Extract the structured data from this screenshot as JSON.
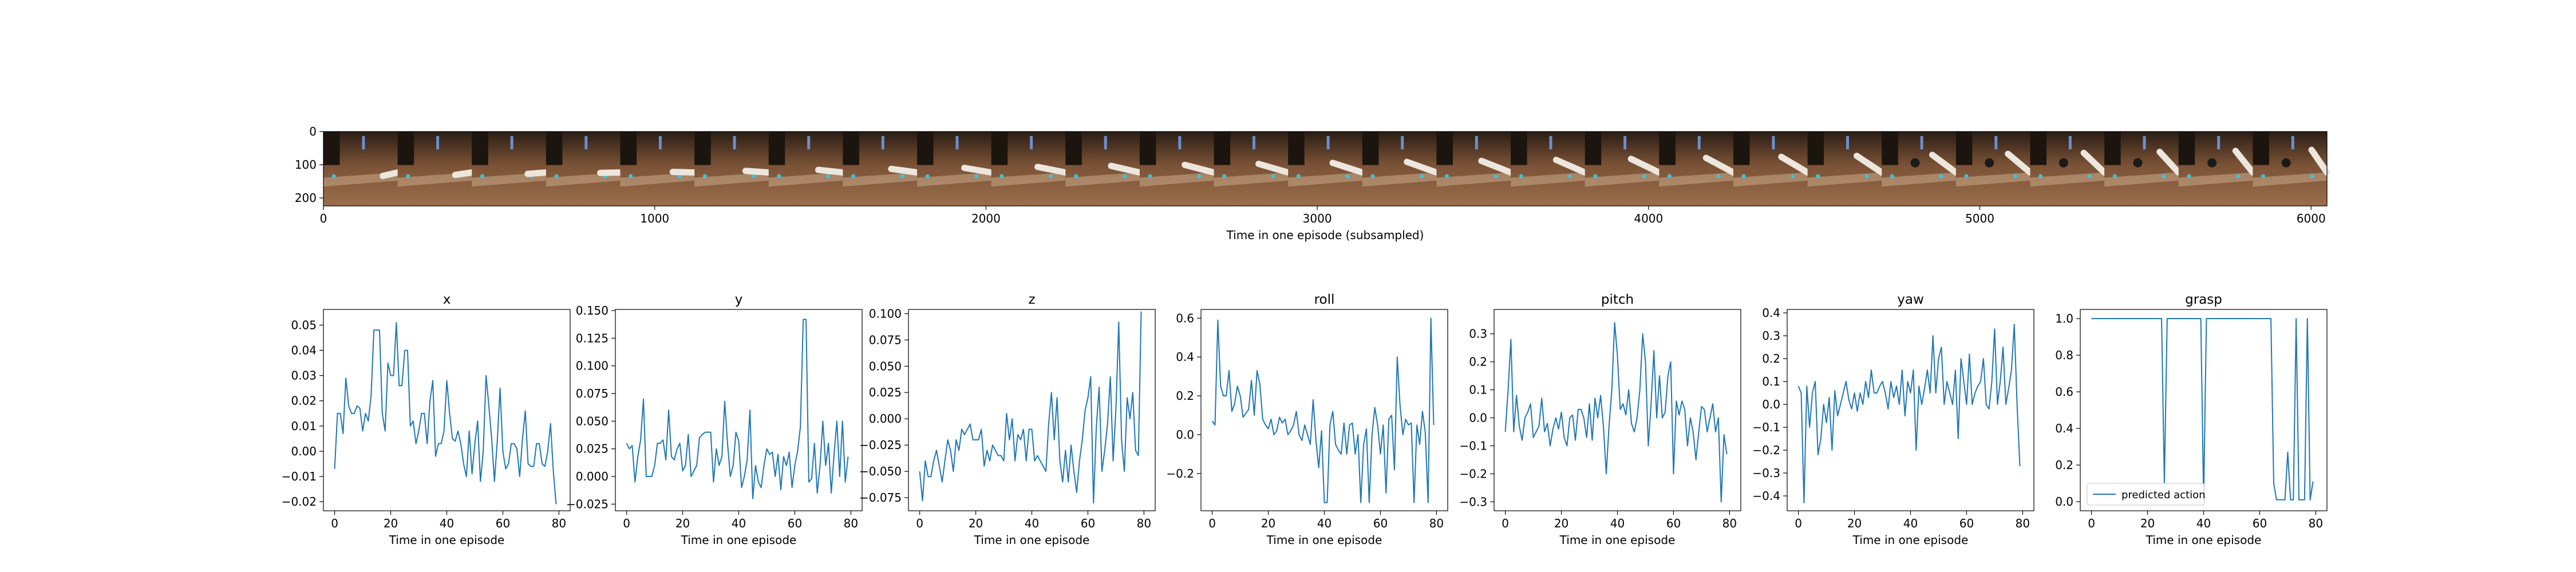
{
  "strip": {
    "xlabel": "Time in one episode (subsampled)",
    "xticks": [
      0,
      1000,
      2000,
      3000,
      4000,
      5000,
      6000
    ],
    "yticks": [
      0,
      100,
      200
    ],
    "xlim": [
      0,
      6048
    ],
    "ylim": [
      224,
      0
    ],
    "frame_count": 27
  },
  "legend": {
    "label": "predicted action"
  },
  "line_color": "#1f77b4",
  "chart_data": [
    {
      "type": "line",
      "title": "x",
      "xlabel": "Time in one episode",
      "ylabel": "",
      "xlim": [
        -4,
        84
      ],
      "ylim": [
        -0.0236,
        0.0562
      ],
      "yticks": [
        -0.02,
        -0.01,
        0.0,
        0.01,
        0.02,
        0.03,
        0.04,
        0.05
      ],
      "ytick_labels": [
        "−0.02",
        "−0.01",
        "0.00",
        "0.01",
        "0.02",
        "0.03",
        "0.04",
        "0.05"
      ],
      "xticks": [
        0,
        20,
        40,
        60,
        80
      ],
      "values": [
        -0.007,
        0.015,
        0.015,
        0.007,
        0.029,
        0.018,
        0.015,
        0.015,
        0.018,
        0.017,
        0.008,
        0.015,
        0.012,
        0.022,
        0.048,
        0.048,
        0.048,
        0.015,
        0.008,
        0.035,
        0.03,
        0.03,
        0.051,
        0.026,
        0.026,
        0.04,
        0.04,
        0.01,
        0.012,
        0.003,
        0.008,
        0.015,
        0.015,
        0.003,
        0.02,
        0.028,
        -0.002,
        0.003,
        0.003,
        0.008,
        0.028,
        0.015,
        0.005,
        0.004,
        0.008,
        0.003,
        -0.005,
        -0.01,
        0.008,
        -0.009,
        0.003,
        0.012,
        -0.012,
        0.0,
        0.03,
        0.018,
        0.005,
        -0.012,
        0.004,
        0.025,
        0.0,
        -0.007,
        -0.005,
        0.003,
        0.003,
        0.001,
        -0.01,
        0.005,
        0.016,
        -0.005,
        -0.006,
        -0.006,
        0.003,
        0.003,
        -0.005,
        -0.006,
        0.0,
        0.011,
        -0.008,
        -0.021
      ]
    },
    {
      "type": "line",
      "title": "y",
      "xlabel": "Time in one episode",
      "ylabel": "",
      "xlim": [
        -4,
        84
      ],
      "ylim": [
        -0.031,
        0.151
      ],
      "yticks": [
        -0.025,
        0.0,
        0.025,
        0.05,
        0.075,
        0.1,
        0.125,
        0.15
      ],
      "ytick_labels": [
        "−0.025",
        "0.000",
        "0.025",
        "0.050",
        "0.075",
        "0.100",
        "0.125",
        "0.150"
      ],
      "xticks": [
        0,
        20,
        40,
        60,
        80
      ],
      "values": [
        0.03,
        0.025,
        0.028,
        -0.005,
        0.018,
        0.033,
        0.07,
        0.0,
        0.0,
        0.0,
        0.01,
        0.03,
        0.03,
        0.033,
        0.015,
        0.06,
        0.018,
        0.015,
        0.025,
        0.03,
        0.005,
        0.01,
        0.038,
        0.0,
        0.005,
        0.01,
        0.035,
        0.038,
        0.04,
        0.04,
        0.04,
        -0.005,
        0.025,
        0.01,
        0.018,
        0.068,
        0.03,
        0.0,
        0.01,
        0.04,
        0.032,
        -0.01,
        0.0,
        0.015,
        0.06,
        -0.02,
        0.01,
        -0.005,
        -0.01,
        0.01,
        0.025,
        0.02,
        0.022,
        0.0,
        0.02,
        -0.012,
        0.018,
        0.01,
        0.022,
        -0.01,
        0.01,
        0.023,
        0.045,
        0.142,
        0.142,
        -0.005,
        -0.002,
        0.03,
        -0.015,
        0.01,
        0.05,
        0.01,
        0.03,
        -0.015,
        0.02,
        0.05,
        0.0,
        0.05,
        -0.005,
        0.018
      ]
    },
    {
      "type": "line",
      "title": "z",
      "xlabel": "Time in one episode",
      "ylabel": "",
      "xlim": [
        -4,
        84
      ],
      "ylim": [
        -0.0875,
        0.104
      ],
      "yticks": [
        -0.075,
        -0.05,
        -0.025,
        0.0,
        0.025,
        0.05,
        0.075,
        0.1
      ],
      "ytick_labels": [
        "−0.075",
        "−0.050",
        "−0.025",
        "0.000",
        "0.025",
        "0.050",
        "0.075",
        "0.100"
      ],
      "xticks": [
        0,
        20,
        40,
        60,
        80
      ],
      "values": [
        -0.05,
        -0.078,
        -0.04,
        -0.055,
        -0.055,
        -0.04,
        -0.03,
        -0.045,
        -0.06,
        -0.04,
        -0.02,
        -0.03,
        -0.05,
        -0.02,
        -0.03,
        -0.01,
        -0.015,
        -0.01,
        -0.005,
        -0.02,
        -0.02,
        -0.02,
        -0.01,
        -0.045,
        -0.03,
        -0.04,
        -0.025,
        -0.03,
        -0.035,
        -0.035,
        -0.04,
        0.005,
        -0.02,
        0.0,
        -0.04,
        -0.015,
        -0.02,
        -0.01,
        -0.04,
        -0.01,
        -0.01,
        -0.04,
        -0.035,
        -0.04,
        -0.045,
        -0.05,
        -0.005,
        0.025,
        -0.02,
        0.02,
        -0.04,
        -0.06,
        -0.03,
        -0.06,
        -0.025,
        -0.05,
        -0.07,
        -0.04,
        -0.02,
        0.008,
        0.02,
        0.04,
        -0.08,
        -0.008,
        0.03,
        -0.05,
        -0.03,
        -0.005,
        0.04,
        -0.04,
        0.01,
        0.092,
        -0.02,
        -0.05,
        0.02,
        0.0,
        0.025,
        -0.03,
        -0.035,
        0.102
      ]
    },
    {
      "type": "line",
      "title": "roll",
      "xlabel": "Time in one episode",
      "ylabel": "",
      "xlim": [
        -4,
        84
      ],
      "ylim": [
        -0.392,
        0.645
      ],
      "yticks": [
        -0.2,
        0.0,
        0.2,
        0.4,
        0.6
      ],
      "ytick_labels": [
        "−0.2",
        "0.0",
        "0.2",
        "0.4",
        "0.6"
      ],
      "xticks": [
        0,
        20,
        40,
        60,
        80
      ],
      "values": [
        0.07,
        0.05,
        0.59,
        0.25,
        0.2,
        0.2,
        0.33,
        0.12,
        0.16,
        0.25,
        0.2,
        0.09,
        0.11,
        0.13,
        0.28,
        0.1,
        0.33,
        0.26,
        0.08,
        0.05,
        0.03,
        0.08,
        0.0,
        0.02,
        0.09,
        0.06,
        0.08,
        0.0,
        0.02,
        0.05,
        0.12,
        0.0,
        -0.03,
        0.05,
        0.0,
        -0.05,
        0.18,
        -0.03,
        -0.17,
        0.02,
        -0.35,
        -0.35,
        0.05,
        0.12,
        -0.05,
        -0.08,
        -0.1,
        0.06,
        -0.1,
        0.05,
        0.06,
        -0.1,
        0.0,
        -0.35,
        -0.05,
        0.03,
        -0.35,
        0.0,
        0.14,
        0.05,
        -0.1,
        0.05,
        -0.3,
        0.08,
        0.1,
        -0.18,
        0.4,
        0.15,
        0.0,
        0.08,
        0.05,
        0.06,
        -0.35,
        0.05,
        -0.05,
        0.12,
        0.01,
        -0.35,
        0.6,
        0.05
      ]
    },
    {
      "type": "line",
      "title": "pitch",
      "xlabel": "Time in one episode",
      "ylabel": "",
      "xlim": [
        -4,
        84
      ],
      "ylim": [
        -0.332,
        0.387
      ],
      "yticks": [
        -0.3,
        -0.2,
        -0.1,
        0.0,
        0.1,
        0.2,
        0.3
      ],
      "ytick_labels": [
        "−0.3",
        "−0.2",
        "−0.1",
        "0.0",
        "0.1",
        "0.2",
        "0.3"
      ],
      "xticks": [
        0,
        20,
        40,
        60,
        80
      ],
      "values": [
        -0.05,
        0.1,
        0.28,
        -0.05,
        0.08,
        -0.03,
        -0.08,
        0.0,
        0.02,
        0.05,
        -0.07,
        -0.05,
        -0.03,
        0.07,
        -0.05,
        -0.02,
        -0.1,
        -0.04,
        0.0,
        -0.04,
        0.02,
        -0.07,
        -0.1,
        0.0,
        0.01,
        -0.08,
        0.03,
        0.03,
        0.0,
        -0.07,
        0.05,
        -0.08,
        0.07,
        0.0,
        0.08,
        -0.03,
        -0.2,
        -0.03,
        0.1,
        0.34,
        0.22,
        0.03,
        0.05,
        0.01,
        0.1,
        -0.02,
        -0.05,
        0.0,
        0.1,
        0.3,
        0.2,
        -0.1,
        0.05,
        0.24,
        0.0,
        0.15,
        0.0,
        0.02,
        0.15,
        0.2,
        -0.2,
        0.06,
        0.01,
        0.06,
        0.03,
        -0.1,
        0.0,
        -0.05,
        -0.15,
        -0.05,
        0.04,
        0.03,
        -0.05,
        0.0,
        0.05,
        -0.05,
        0.0,
        -0.3,
        -0.06,
        -0.13
      ]
    },
    {
      "type": "line",
      "title": "yaw",
      "xlabel": "Time in one episode",
      "ylabel": "",
      "xlim": [
        -4,
        84
      ],
      "ylim": [
        -0.465,
        0.415
      ],
      "yticks": [
        -0.4,
        -0.3,
        -0.2,
        -0.1,
        0.0,
        0.1,
        0.2,
        0.3,
        0.4
      ],
      "ytick_labels": [
        "−0.4",
        "−0.3",
        "−0.2",
        "−0.1",
        "0.0",
        "0.1",
        "0.2",
        "0.3",
        "0.4"
      ],
      "xticks": [
        0,
        20,
        40,
        60,
        80
      ],
      "values": [
        0.08,
        0.05,
        -0.43,
        0.08,
        -0.1,
        0.05,
        0.1,
        -0.22,
        -0.15,
        0.0,
        -0.08,
        0.03,
        -0.2,
        0.06,
        -0.05,
        0.0,
        0.05,
        0.1,
        0.02,
        -0.02,
        0.05,
        -0.03,
        0.05,
        0.0,
        0.1,
        0.03,
        0.15,
        0.05,
        0.05,
        0.08,
        0.1,
        0.05,
        -0.02,
        0.1,
        0.03,
        0.08,
        0.0,
        0.15,
        -0.05,
        0.1,
        0.05,
        0.15,
        -0.2,
        0.08,
        0.0,
        0.07,
        0.15,
        0.05,
        0.3,
        0.05,
        0.2,
        0.25,
        0.0,
        0.1,
        0.05,
        0.0,
        0.15,
        -0.15,
        0.2,
        0.1,
        0.0,
        0.22,
        0.0,
        0.05,
        0.08,
        0.1,
        0.2,
        0.0,
        -0.02,
        0.1,
        0.33,
        0.0,
        0.1,
        0.25,
        0.0,
        0.07,
        0.15,
        0.35,
        0.0,
        -0.27
      ]
    },
    {
      "type": "line",
      "title": "grasp",
      "xlabel": "Time in one episode",
      "ylabel": "",
      "xlim": [
        -4,
        84
      ],
      "ylim": [
        -0.05,
        1.05
      ],
      "yticks": [
        0.0,
        0.2,
        0.4,
        0.6,
        0.8,
        1.0
      ],
      "ytick_labels": [
        "0.0",
        "0.2",
        "0.4",
        "0.6",
        "0.8",
        "1.0"
      ],
      "xticks": [
        0,
        20,
        40,
        60,
        80
      ],
      "legend": "predicted action",
      "values": [
        1,
        1,
        1,
        1,
        1,
        1,
        1,
        1,
        1,
        1,
        1,
        1,
        1,
        1,
        1,
        1,
        1,
        1,
        1,
        1,
        1,
        1,
        1,
        1,
        1,
        1,
        0.1,
        1,
        1,
        1,
        1,
        1,
        1,
        1,
        1,
        1,
        1,
        1,
        1,
        1,
        0.01,
        1,
        1,
        1,
        1,
        1,
        1,
        1,
        1,
        1,
        1,
        1,
        1,
        1,
        1,
        1,
        1,
        1,
        1,
        1,
        1,
        1,
        1,
        1,
        1,
        0.1,
        0.01,
        0.01,
        0.01,
        0.01,
        0.27,
        0.01,
        0.01,
        1,
        0.01,
        0.01,
        0.01,
        1,
        0.01,
        0.11
      ]
    }
  ]
}
